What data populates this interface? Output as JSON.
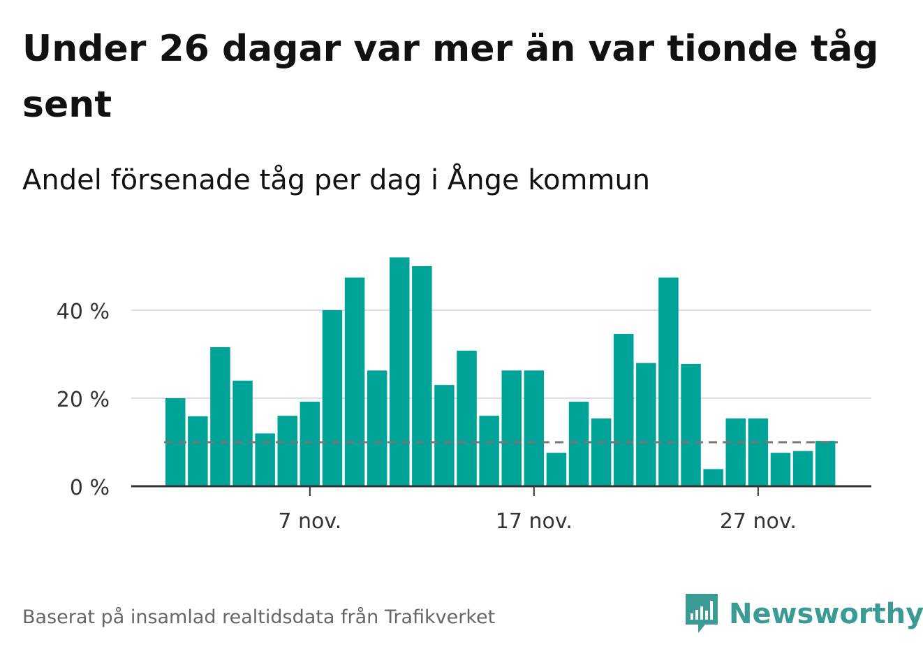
{
  "title": "Under 26 dagar var mer än var tionde tåg sent",
  "subtitle": "Andel försenade tåg per dag i Ånge kommun",
  "source": "Baserat på insamlad realtidsdata från Trafikverket",
  "brand": {
    "name": "Newsworthy",
    "color": "#3a9b94",
    "icon": "newsworthy-logo-icon"
  },
  "colors": {
    "bar": "#00a398",
    "reference_line": "#777777",
    "grid": "#dddddd",
    "axis": "#333333"
  },
  "chart_data": {
    "type": "bar",
    "x_start_day": 1,
    "x_month_label": "nov.",
    "x_ticks": [
      "7 nov.",
      "17 nov.",
      "27 nov."
    ],
    "x_tick_days": [
      7,
      17,
      27
    ],
    "y_ticks": [
      "0 %",
      "20 %",
      "40 %"
    ],
    "y_tick_values": [
      0,
      20,
      40
    ],
    "ylim": [
      0,
      55
    ],
    "values": [
      20.0,
      15.9,
      31.6,
      24.0,
      12.0,
      16.0,
      19.2,
      40.0,
      47.4,
      26.3,
      52.0,
      50.0,
      23.0,
      30.8,
      16.0,
      26.3,
      26.3,
      7.6,
      19.2,
      15.4,
      34.6,
      28.0,
      47.4,
      27.8,
      3.9,
      15.4,
      15.4,
      7.6,
      8.0,
      10.3
    ],
    "reference_line": 10,
    "grid": true
  }
}
